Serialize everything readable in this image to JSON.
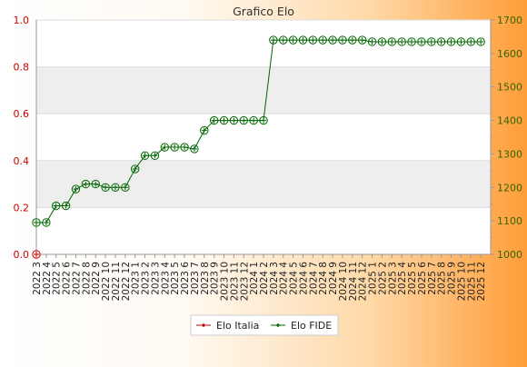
{
  "chart_data": {
    "type": "line",
    "title": "Grafico Elo",
    "categories": [
      "2022 3",
      "2022 4",
      "2022 5",
      "2022 6",
      "2022 7",
      "2022 8",
      "2022 9",
      "2022 10",
      "2022 11",
      "2022 12",
      "2023 1",
      "2023 2",
      "2023 3",
      "2023 4",
      "2023 5",
      "2023 6",
      "2023 7",
      "2023 8",
      "2023 9",
      "2023 10",
      "2023 11",
      "2023 12",
      "2024 1",
      "2024 2",
      "2024 3",
      "2024 4",
      "2024 5",
      "2024 6",
      "2024 7",
      "2024 8",
      "2024 9",
      "2024 10",
      "2024 11",
      "2024 12",
      "2025 1",
      "2025 2",
      "2025 3",
      "2025 4",
      "2025 5",
      "2025 6",
      "2025 7",
      "2025 8",
      "2025 9",
      "2025 10",
      "2025 11",
      "2025 12"
    ],
    "left_axis": {
      "ylim": [
        0,
        1
      ],
      "ticks": [
        "0.0",
        "0.2",
        "0.4",
        "0.6",
        "0.8",
        "1.0"
      ],
      "color": "#cc0000"
    },
    "right_axis": {
      "ylim": [
        1000,
        1700
      ],
      "ticks": [
        "1000",
        "1100",
        "1200",
        "1300",
        "1400",
        "1500",
        "1600",
        "1700"
      ],
      "color": "#336600"
    },
    "series": [
      {
        "name": "Elo Italia",
        "axis": "left",
        "color": "#cc0000",
        "values": [
          0,
          null,
          null,
          null,
          null,
          null,
          null,
          null,
          null,
          null,
          null,
          null,
          null,
          null,
          null,
          null,
          null,
          null,
          null,
          null,
          null,
          null,
          null,
          null,
          null,
          null,
          null,
          null,
          null,
          null,
          null,
          null,
          null,
          null,
          null,
          null,
          null,
          null,
          null,
          null,
          null,
          null,
          null,
          null,
          null,
          null
        ]
      },
      {
        "name": "Elo FIDE",
        "axis": "right",
        "color": "#006600",
        "values": [
          1095,
          1095,
          1145,
          1145,
          1195,
          1210,
          1210,
          1200,
          1200,
          1200,
          1255,
          1295,
          1295,
          1320,
          1320,
          1320,
          1315,
          1370,
          1400,
          1400,
          1400,
          1400,
          1400,
          1400,
          1640,
          1640,
          1640,
          1640,
          1640,
          1640,
          1640,
          1640,
          1640,
          1640,
          1635,
          1635,
          1635,
          1635,
          1635,
          1635,
          1635,
          1635,
          1635,
          1635,
          1635,
          1635
        ]
      }
    ],
    "grid": true,
    "legend_position": "bottom"
  }
}
